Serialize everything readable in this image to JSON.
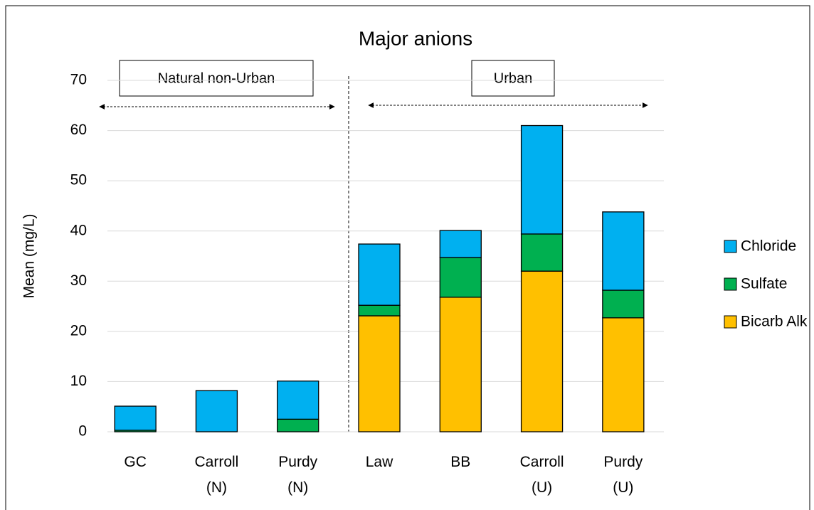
{
  "chart_data": {
    "type": "stacked_bar",
    "title": "Major anions",
    "y_label": "Mean (mg/L)",
    "categories": [
      "GC",
      "Carroll\n(N)",
      "Purdy\n(N)",
      "Law",
      "BB",
      "Carroll\n(U)",
      "Purdy\n(U)"
    ],
    "series": [
      {
        "name": "Bicarb Alk",
        "color": "#ffc000",
        "values": [
          0,
          0,
          0,
          23.1,
          26.8,
          32.0,
          22.7
        ]
      },
      {
        "name": "Sulfate",
        "color": "#00b050",
        "values": [
          0.3,
          0,
          2.5,
          2.1,
          7.9,
          7.4,
          5.5
        ]
      },
      {
        "name": "Chloride",
        "color": "#00b0f0",
        "values": [
          4.8,
          8.2,
          7.6,
          12.2,
          5.4,
          21.6,
          15.6
        ]
      }
    ],
    "ylim": [
      0,
      70
    ],
    "yticks": [
      0,
      10,
      20,
      30,
      40,
      50,
      60,
      70
    ],
    "grid": true,
    "legend": "right",
    "annotations": [
      "Natural non-Urban",
      "Urban"
    ]
  }
}
